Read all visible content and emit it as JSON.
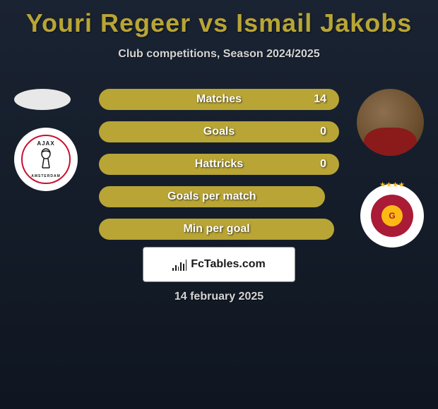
{
  "header": {
    "title": "Youri Regeer vs Ismail Jakobs",
    "subtitle": "Club competitions, Season 2024/2025"
  },
  "stats": [
    {
      "label": "Matches",
      "value_right": "14",
      "width_pct": 100
    },
    {
      "label": "Goals",
      "value_right": "0",
      "width_pct": 100
    },
    {
      "label": "Hattricks",
      "value_right": "0",
      "width_pct": 100
    },
    {
      "label": "Goals per match",
      "value_right": "",
      "width_pct": 94
    },
    {
      "label": "Min per goal",
      "value_right": "",
      "width_pct": 98
    }
  ],
  "branding": {
    "icon_bars": [
      4,
      8,
      6,
      12,
      10,
      16
    ],
    "label": "FcTables.com"
  },
  "date": "14 february 2025",
  "colors": {
    "bar": "#b8a535",
    "title": "#b8a535",
    "text_light": "#d4d4d4",
    "bg_top": "#1a2332",
    "bg_bottom": "#0f1621"
  }
}
